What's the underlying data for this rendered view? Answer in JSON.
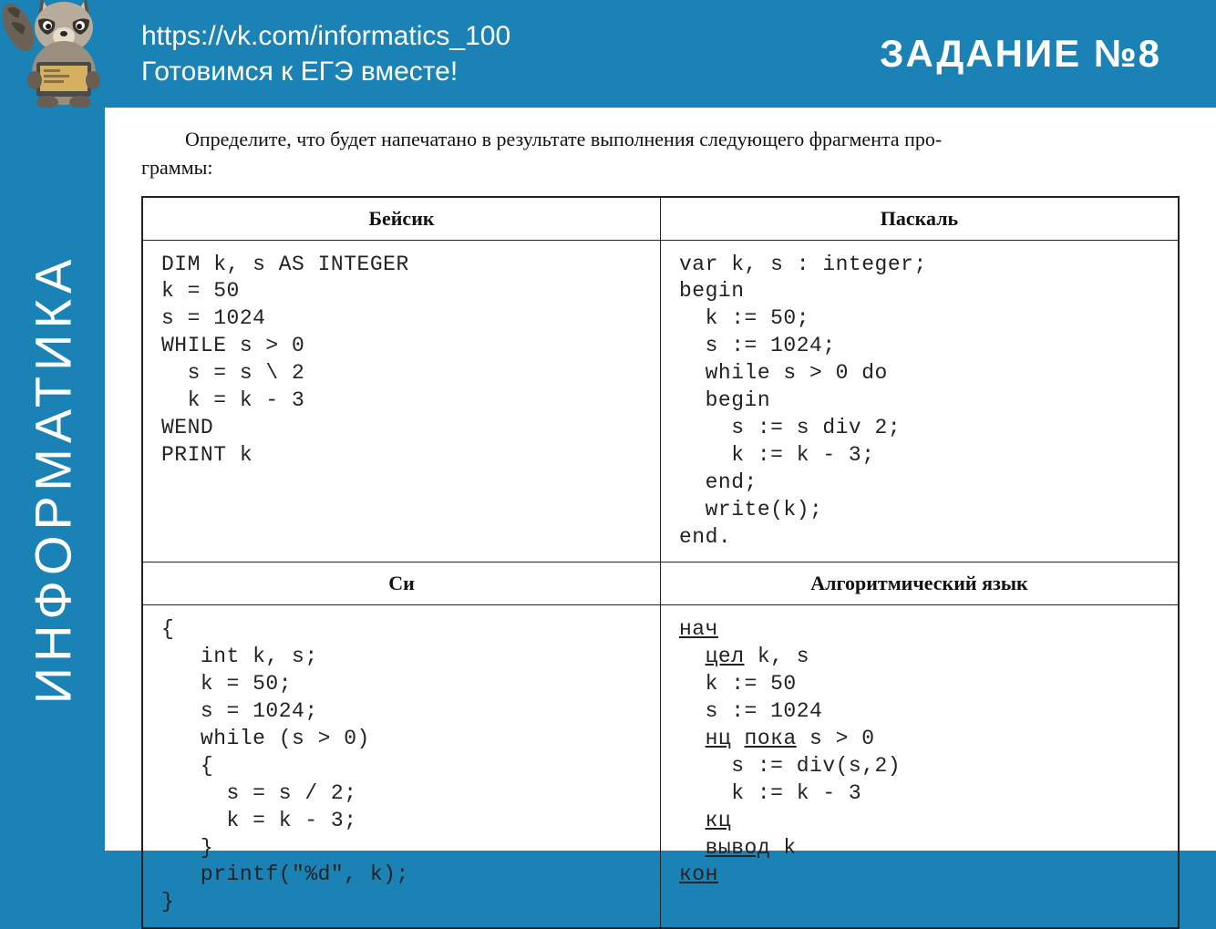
{
  "header": {
    "link": "https://vk.com/informatics_100",
    "subtitle": "Готовимся к ЕГЭ вместе!",
    "task_title": "ЗАДАНИЕ №8"
  },
  "sidebar": {
    "label": "ИНФОРМАТИКА"
  },
  "question": {
    "text_part1": "Определите, что будет напечатано в результате выполнения следующего фрагмента про-",
    "text_part2": "граммы:"
  },
  "table": {
    "headers": [
      "Бейсик",
      "Паскаль",
      "Си",
      "Алгоритмический язык"
    ],
    "cells": {
      "basic": "DIM k, s AS INTEGER\nk = 50\ns = 1024\nWHILE s > 0\n  s = s \\ 2\n  k = k - 3\nWEND\nPRINT k",
      "pascal": "var k, s : integer;\nbegin\n  k := 50;\n  s := 1024;\n  while s > 0 do\n  begin\n    s := s div 2;\n    k := k - 3;\n  end;\n  write(k);\nend.",
      "c": "{\n   int k, s;\n   k = 50;\n   s = 1024;\n   while (s > 0)\n   {\n     s = s / 2;\n     k = k - 3;\n   }\n   printf(\"%d\", k);\n}",
      "algo_html": "<span class=\"underline\">нач</span>\n  <span class=\"underline\">цел</span> k, s\n  k := 50\n  s := 1024\n  <span class=\"underline\">нц</span> <span class=\"underline\">пока</span> s > 0\n    s := div(s,2)\n    k := k - 3\n  <span class=\"underline\">кц</span>\n  <span class=\"underline\">вывод</span> k\n<span class=\"underline\">кон</span>"
    }
  },
  "colors": {
    "primary": "#1b82b5",
    "white": "#ffffff",
    "text": "#111111",
    "border": "#222222"
  }
}
